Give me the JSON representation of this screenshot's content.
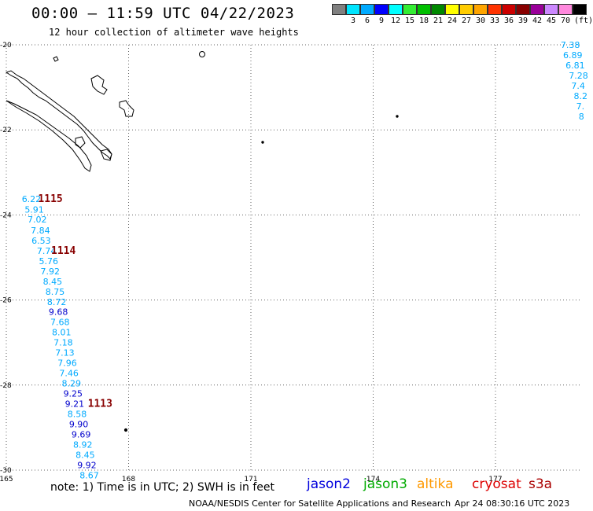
{
  "header": {
    "title": "00:00 – 11:59 UTC 04/22/2023",
    "subtitle": "12 hour collection of altimeter wave heights"
  },
  "legend": {
    "unit": "(ft)",
    "bins": [
      {
        "label": "",
        "color": "#808080"
      },
      {
        "label": "3",
        "color": "#00e5ff"
      },
      {
        "label": "6",
        "color": "#00aaff"
      },
      {
        "label": "9",
        "color": "#0000ff"
      },
      {
        "label": "12",
        "color": "#00ffff"
      },
      {
        "label": "15",
        "color": "#33ee33"
      },
      {
        "label": "18",
        "color": "#00c000"
      },
      {
        "label": "21",
        "color": "#008800"
      },
      {
        "label": "24",
        "color": "#ffff00"
      },
      {
        "label": "27",
        "color": "#ffcc00"
      },
      {
        "label": "30",
        "color": "#ffa500"
      },
      {
        "label": "33",
        "color": "#ff3300"
      },
      {
        "label": "36",
        "color": "#cc0000"
      },
      {
        "label": "39",
        "color": "#880000"
      },
      {
        "label": "42",
        "color": "#990099"
      },
      {
        "label": "45",
        "color": "#cc88ff"
      },
      {
        "label": "70",
        "color": "#ff88dd"
      },
      {
        "label": "",
        "color": "#000000"
      }
    ]
  },
  "map": {
    "lat_ticks": [
      "-20",
      "-22",
      "-24",
      "-26",
      "-28",
      "-30"
    ],
    "lon_ticks": [
      "165",
      "168",
      "171",
      "174",
      "177"
    ],
    "lat_range": [
      -30,
      -20
    ],
    "lon_range": [
      165,
      179.2
    ]
  },
  "observations": [
    {
      "text": "6.22",
      "color": "#00aaff",
      "lon": 165.38,
      "lat": -23.62
    },
    {
      "text": "5.91",
      "color": "#00aaff",
      "lon": 165.45,
      "lat": -23.87
    },
    {
      "text": "7.02",
      "color": "#00aaff",
      "lon": 165.52,
      "lat": -24.1
    },
    {
      "text": "7.84",
      "color": "#00aaff",
      "lon": 165.6,
      "lat": -24.36
    },
    {
      "text": "6.53",
      "color": "#00aaff",
      "lon": 165.62,
      "lat": -24.6
    },
    {
      "text": "7.74",
      "color": "#00aaff",
      "lon": 165.75,
      "lat": -24.84
    },
    {
      "text": "5.76",
      "color": "#00aaff",
      "lon": 165.8,
      "lat": -25.08
    },
    {
      "text": "7.92",
      "color": "#00aaff",
      "lon": 165.84,
      "lat": -25.32
    },
    {
      "text": "8.45",
      "color": "#00aaff",
      "lon": 165.9,
      "lat": -25.56
    },
    {
      "text": "8.75",
      "color": "#00aaff",
      "lon": 165.96,
      "lat": -25.8
    },
    {
      "text": "8.72",
      "color": "#00aaff",
      "lon": 166.0,
      "lat": -26.04
    },
    {
      "text": "9.68",
      "color": "#0000cc",
      "lon": 166.04,
      "lat": -26.28
    },
    {
      "text": "7.68",
      "color": "#00aaff",
      "lon": 166.08,
      "lat": -26.52
    },
    {
      "text": "8.01",
      "color": "#00aaff",
      "lon": 166.12,
      "lat": -26.76
    },
    {
      "text": "7.18",
      "color": "#00aaff",
      "lon": 166.16,
      "lat": -27.0
    },
    {
      "text": "7.13",
      "color": "#00aaff",
      "lon": 166.2,
      "lat": -27.24
    },
    {
      "text": "7.96",
      "color": "#00aaff",
      "lon": 166.26,
      "lat": -27.48
    },
    {
      "text": "7.46",
      "color": "#00aaff",
      "lon": 166.3,
      "lat": -27.72
    },
    {
      "text": "8.29",
      "color": "#00aaff",
      "lon": 166.36,
      "lat": -27.96
    },
    {
      "text": "9.25",
      "color": "#0000cc",
      "lon": 166.4,
      "lat": -28.2
    },
    {
      "text": "9.21",
      "color": "#0000cc",
      "lon": 166.44,
      "lat": -28.44
    },
    {
      "text": "8.58",
      "color": "#00aaff",
      "lon": 166.5,
      "lat": -28.68
    },
    {
      "text": "9.90",
      "color": "#0000cc",
      "lon": 166.54,
      "lat": -28.92
    },
    {
      "text": "9.69",
      "color": "#0000cc",
      "lon": 166.6,
      "lat": -29.16
    },
    {
      "text": "8.92",
      "color": "#00aaff",
      "lon": 166.64,
      "lat": -29.4
    },
    {
      "text": "8.45",
      "color": "#00aaff",
      "lon": 166.7,
      "lat": -29.64
    },
    {
      "text": "9.92",
      "color": "#0000cc",
      "lon": 166.74,
      "lat": -29.88
    },
    {
      "text": "8.67",
      "color": "#00aaff",
      "lon": 166.8,
      "lat": -30.12
    },
    {
      "text": "7.38",
      "color": "#00aaff",
      "lon": 178.6,
      "lat": -20.0
    },
    {
      "text": "6.89",
      "color": "#00aaff",
      "lon": 178.66,
      "lat": -20.24
    },
    {
      "text": "6.81",
      "color": "#00aaff",
      "lon": 178.72,
      "lat": -20.48
    },
    {
      "text": "7.28",
      "color": "#00aaff",
      "lon": 178.8,
      "lat": -20.72
    },
    {
      "text": "7.4",
      "color": "#00aaff",
      "lon": 178.86,
      "lat": -20.96
    },
    {
      "text": "8.2",
      "color": "#00aaff",
      "lon": 178.92,
      "lat": -21.2
    },
    {
      "text": "7.",
      "color": "#00aaff",
      "lon": 178.98,
      "lat": -21.44
    },
    {
      "text": "8",
      "color": "#00aaff",
      "lon": 179.04,
      "lat": -21.68
    }
  ],
  "hour_labels": [
    {
      "text": "1115",
      "lon": 165.78,
      "lat": -23.62
    },
    {
      "text": "1114",
      "lon": 166.1,
      "lat": -24.84
    },
    {
      "text": "1113",
      "lon": 167.0,
      "lat": -28.44
    }
  ],
  "footer": {
    "note": "note:  1) Time is in UTC;  2) SWH is in feet",
    "missions": [
      {
        "name": "jason2",
        "color": "#0000dd"
      },
      {
        "name": "jason3",
        "color": "#00aa00"
      },
      {
        "name": "altika",
        "color": "#ff9900"
      },
      {
        "name": "cryosat",
        "color": "#dd0000"
      },
      {
        "name": "s3a",
        "color": "#aa0000"
      }
    ],
    "credit": "NOAA/NESDIS Center for Satellite Applications and Research",
    "timestamp": "Apr 24 08:30:16 UTC 2023"
  }
}
